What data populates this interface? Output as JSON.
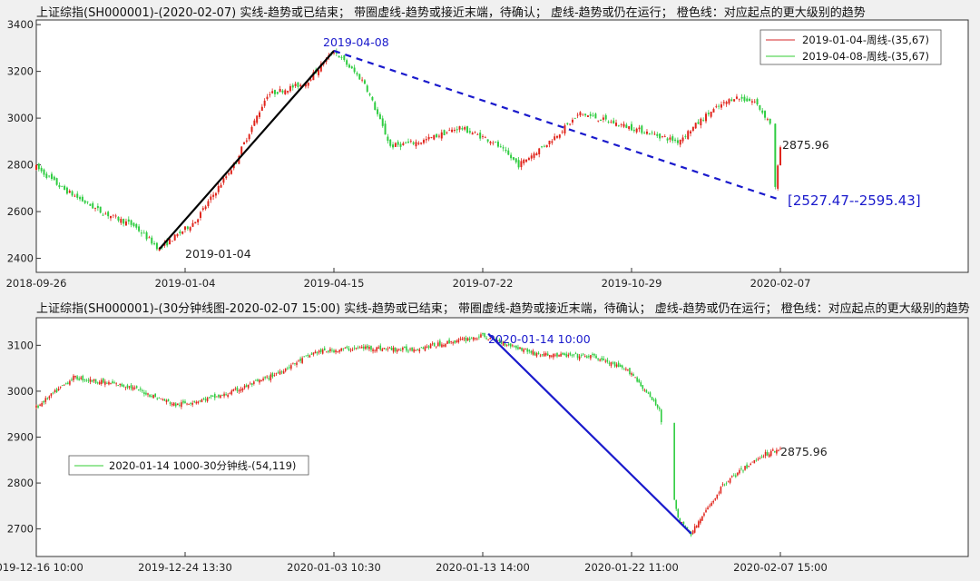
{
  "chart_data": [
    {
      "type": "candlestick",
      "title": "上证综指(SH000001)-(2020-02-07) 实线-趋势或已结束； 带圈虚线-趋势或接近末端，待确认； 虚线-趋势或仍在运行； 橙色线：对应起点的更大级别的趋势",
      "x_ticks": [
        "2018-09-26",
        "2019-01-04",
        "2019-04-15",
        "2019-07-22",
        "2019-10-29",
        "2020-02-07"
      ],
      "y_ticks": [
        2400,
        2600,
        2800,
        3000,
        3200,
        3400
      ],
      "ylim": [
        2340,
        3420
      ],
      "legend": [
        {
          "label": "2019-01-04-周线-(35,67)",
          "color": "#d62728"
        },
        {
          "label": "2019-04-08-周线-(35,67)",
          "color": "#33cc33"
        }
      ],
      "annotations": {
        "low_label": "2019-01-04",
        "high_label": "2019-04-08",
        "last_value": "2875.96",
        "target_range": "[2527.47--2595.43]"
      },
      "key_points": [
        {
          "x": 0,
          "y": 2790
        },
        {
          "x": 10,
          "y": 2700
        },
        {
          "x": 25,
          "y": 2600
        },
        {
          "x": 38,
          "y": 2540
        },
        {
          "x": 48,
          "y": 2440
        },
        {
          "x": 62,
          "y": 2560
        },
        {
          "x": 77,
          "y": 2800
        },
        {
          "x": 90,
          "y": 3100
        },
        {
          "x": 105,
          "y": 3150
        },
        {
          "x": 116,
          "y": 3288
        },
        {
          "x": 128,
          "y": 3150
        },
        {
          "x": 138,
          "y": 2880
        },
        {
          "x": 150,
          "y": 2900
        },
        {
          "x": 165,
          "y": 2960
        },
        {
          "x": 178,
          "y": 2900
        },
        {
          "x": 188,
          "y": 2800
        },
        {
          "x": 200,
          "y": 2900
        },
        {
          "x": 212,
          "y": 3020
        },
        {
          "x": 225,
          "y": 2980
        },
        {
          "x": 238,
          "y": 2940
        },
        {
          "x": 250,
          "y": 2900
        },
        {
          "x": 262,
          "y": 3020
        },
        {
          "x": 272,
          "y": 3090
        },
        {
          "x": 280,
          "y": 3070
        },
        {
          "x": 286,
          "y": 2980
        },
        {
          "x": 288,
          "y": 2700
        },
        {
          "x": 290,
          "y": 2876
        }
      ],
      "trend_lines": [
        {
          "from": [
            48,
            2440
          ],
          "to": [
            116,
            3288
          ],
          "style": "solid",
          "color": "#000000"
        },
        {
          "from": [
            116,
            3288
          ],
          "to": [
            290,
            2650
          ],
          "style": "dashed",
          "color": "#1a1acc"
        }
      ]
    },
    {
      "type": "candlestick",
      "title": "上证综指(SH000001)-(30分钟线图-2020-02-07 15:00) 实线-趋势或已结束； 带圈虚线-趋势或接近末端，待确认； 虚线-趋势或仍在运行； 橙色线：对应起点的更大级别的趋势",
      "x_ticks": [
        "2019-12-16 10:00",
        "2019-12-24 13:30",
        "2020-01-03 10:30",
        "2020-01-13 14:00",
        "2020-01-22 11:00",
        "2020-02-07 15:00"
      ],
      "y_ticks": [
        2700,
        2800,
        2900,
        3000,
        3100
      ],
      "ylim": [
        2640,
        3160
      ],
      "legend": [
        {
          "label": "2020-01-14 1000-30分钟线-(54,119)",
          "color": "#33cc33"
        }
      ],
      "annotations": {
        "high_label": "2020-01-14 10:00",
        "last_value": "2875.96"
      },
      "key_points": [
        {
          "x": 0,
          "y": 2965
        },
        {
          "x": 20,
          "y": 3030
        },
        {
          "x": 50,
          "y": 3010
        },
        {
          "x": 75,
          "y": 2970
        },
        {
          "x": 100,
          "y": 2990
        },
        {
          "x": 125,
          "y": 3030
        },
        {
          "x": 150,
          "y": 3085
        },
        {
          "x": 175,
          "y": 3095
        },
        {
          "x": 200,
          "y": 3090
        },
        {
          "x": 240,
          "y": 3120
        },
        {
          "x": 270,
          "y": 3080
        },
        {
          "x": 300,
          "y": 3075
        },
        {
          "x": 320,
          "y": 3040
        },
        {
          "x": 335,
          "y": 2960
        },
        {
          "x": 345,
          "y": 2720
        },
        {
          "x": 352,
          "y": 2690
        },
        {
          "x": 370,
          "y": 2800
        },
        {
          "x": 390,
          "y": 2860
        },
        {
          "x": 400,
          "y": 2876
        }
      ],
      "trend_lines": [
        {
          "from": [
            243,
            3125
          ],
          "to": [
            352,
            2690
          ],
          "style": "solid",
          "color": "#1a1acc"
        }
      ]
    }
  ]
}
